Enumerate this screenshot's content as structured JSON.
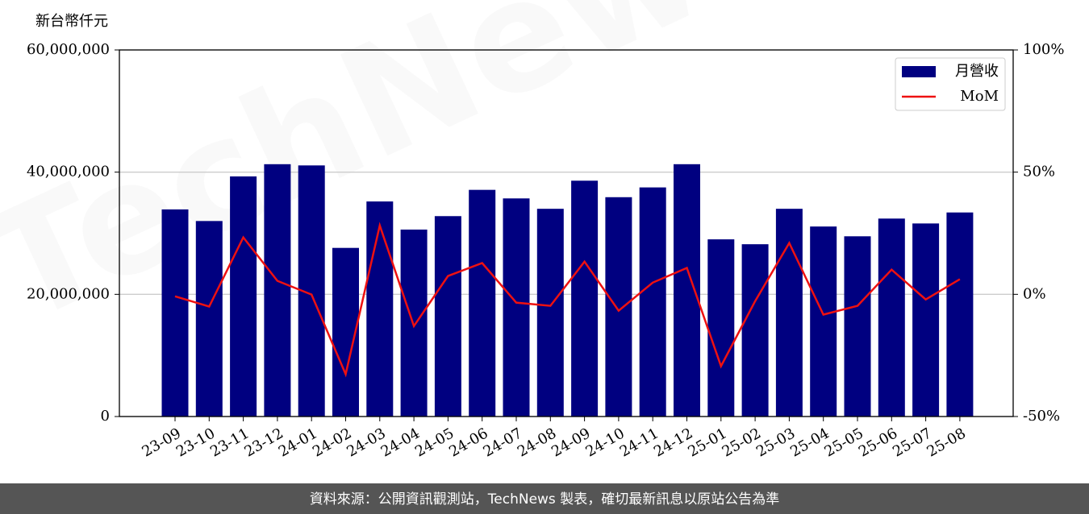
{
  "chart_data": {
    "type": "bar",
    "watermark": "TechNews",
    "y_label": "新台幣仟元",
    "footer": "資料來源：公開資訊觀測站，TechNews 製表，確切最新訊息以原站公告為準",
    "categories": [
      "23-09",
      "23-10",
      "23-11",
      "23-12",
      "24-01",
      "24-02",
      "24-03",
      "24-04",
      "24-05",
      "24-06",
      "24-07",
      "24-08",
      "24-09",
      "24-10",
      "24-11",
      "24-12",
      "25-01",
      "25-02",
      "25-03",
      "25-04",
      "25-05",
      "25-06",
      "25-07",
      "25-08"
    ],
    "series": [
      {
        "name": "月營收",
        "type": "bar",
        "color": "#000080",
        "values": [
          33900000,
          32000000,
          39300000,
          41300000,
          41100000,
          27600000,
          35200000,
          30600000,
          32800000,
          37100000,
          35700000,
          34000000,
          38600000,
          35900000,
          37500000,
          41300000,
          29000000,
          28200000,
          34000000,
          31100000,
          29500000,
          32400000,
          31600000,
          33400000
        ]
      },
      {
        "name": "MoM",
        "type": "line",
        "axis": "y2",
        "color": "#ee1111",
        "values": [
          -0.8,
          -5.0,
          23.3,
          5.5,
          -0.1,
          -32.7,
          28.2,
          -13.0,
          7.5,
          12.8,
          -3.4,
          -4.7,
          13.4,
          -6.7,
          4.8,
          10.8,
          -29.4,
          -2.8,
          21.0,
          -8.3,
          -4.7,
          10.1,
          -2.1,
          6.2
        ]
      }
    ],
    "ylim": [
      0,
      60000000
    ],
    "yticks": [
      {
        "value": 0,
        "label": "0"
      },
      {
        "value": 20000000,
        "label": "20,000,000"
      },
      {
        "value": 40000000,
        "label": "40,000,000"
      },
      {
        "value": 60000000,
        "label": "60,000,000"
      }
    ],
    "y2lim": [
      -50,
      100
    ],
    "y2ticks": [
      {
        "value": -50,
        "label": "-50%"
      },
      {
        "value": 0,
        "label": "0%"
      },
      {
        "value": 50,
        "label": "50%"
      },
      {
        "value": 100,
        "label": "100%"
      }
    ],
    "grid": true,
    "legend": "upper right"
  }
}
